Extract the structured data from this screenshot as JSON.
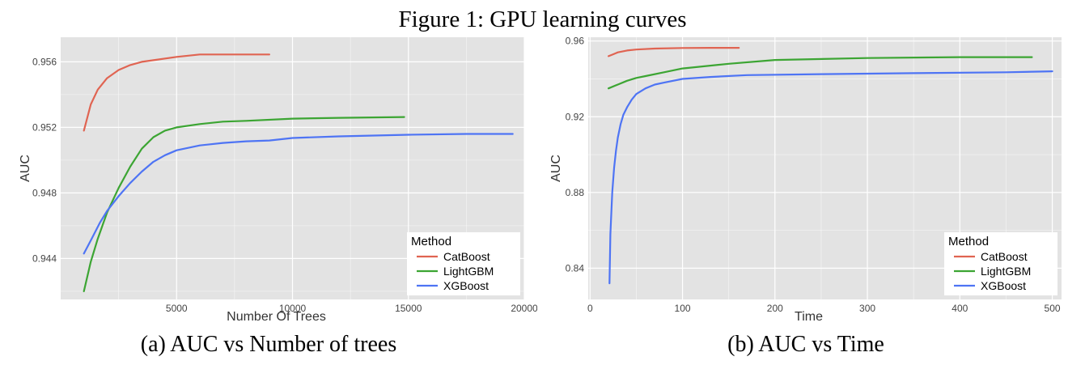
{
  "figure_title": "Figure 1: GPU learning curves",
  "captions": [
    "(a) AUC vs Number of trees",
    "(b) AUC vs Time"
  ],
  "colors": {
    "CatBoost": "#e06452",
    "LightGBM": "#3ca533",
    "XGBoost": "#4e74f4",
    "panel": "#e3e3e3",
    "grid": "#ffffff"
  },
  "chart_data": [
    {
      "type": "line",
      "xlabel": "Number Of Trees",
      "ylabel": "AUC",
      "xlim": [
        0,
        20000
      ],
      "ylim": [
        0.9415,
        0.9575
      ],
      "xticks": [
        5000,
        10000,
        15000,
        20000
      ],
      "xtick_labels": [
        "5000",
        "10000",
        "15000",
        "20000"
      ],
      "yticks": [
        0.944,
        0.948,
        0.952,
        0.956
      ],
      "ytick_labels": [
        "0.944",
        "0.948",
        "0.952",
        "0.956"
      ],
      "grid": true,
      "legend": {
        "title": "Method",
        "position": "bottom-right"
      },
      "series": [
        {
          "name": "CatBoost",
          "x": [
            1000,
            1300,
            1600,
            2000,
            2500,
            3000,
            3500,
            4000,
            5000,
            6000,
            7000,
            8000,
            9000
          ],
          "y": [
            0.9518,
            0.9534,
            0.9543,
            0.955,
            0.9555,
            0.9558,
            0.956,
            0.9561,
            0.9563,
            0.95645,
            0.95645,
            0.95645,
            0.95645
          ]
        },
        {
          "name": "LightGBM",
          "x": [
            1000,
            1300,
            1600,
            2000,
            2500,
            3000,
            3500,
            4000,
            4500,
            5000,
            6000,
            7000,
            8000,
            10000,
            12000,
            14820
          ],
          "y": [
            0.942,
            0.9438,
            0.9452,
            0.9468,
            0.9483,
            0.9496,
            0.9507,
            0.9514,
            0.9518,
            0.952,
            0.9522,
            0.95235,
            0.9524,
            0.95253,
            0.95258,
            0.95263
          ]
        },
        {
          "name": "XGBoost",
          "x": [
            1000,
            1300,
            1700,
            2000,
            2500,
            3000,
            3500,
            4000,
            4500,
            5000,
            6000,
            7000,
            8000,
            9000,
            10000,
            12000,
            15000,
            17500,
            19500
          ],
          "y": [
            0.9443,
            0.9451,
            0.9462,
            0.9469,
            0.9478,
            0.9486,
            0.9493,
            0.9499,
            0.9503,
            0.9506,
            0.9509,
            0.95105,
            0.95115,
            0.9512,
            0.95135,
            0.95145,
            0.95155,
            0.9516,
            0.9516
          ]
        }
      ]
    },
    {
      "type": "line",
      "xlabel": "Time",
      "ylabel": "AUC",
      "xlim": [
        -2,
        510
      ],
      "ylim": [
        0.8235,
        0.962
      ],
      "xticks": [
        0,
        100,
        200,
        300,
        400,
        500
      ],
      "xtick_labels": [
        "0",
        "100",
        "200",
        "300",
        "400",
        "500"
      ],
      "yticks": [
        0.84,
        0.88,
        0.92,
        0.96
      ],
      "ytick_labels": [
        "0.84",
        "0.88",
        "0.92",
        "0.96"
      ],
      "grid": true,
      "legend": {
        "title": "Method",
        "position": "bottom-right"
      },
      "series": [
        {
          "name": "CatBoost",
          "x": [
            20,
            25,
            30,
            40,
            50,
            70,
            100,
            130,
            161
          ],
          "y": [
            0.952,
            0.953,
            0.954,
            0.955,
            0.9555,
            0.956,
            0.9563,
            0.9564,
            0.9564
          ]
        },
        {
          "name": "LightGBM",
          "x": [
            20,
            30,
            40,
            50,
            60,
            80,
            100,
            150,
            200,
            300,
            400,
            478
          ],
          "y": [
            0.935,
            0.937,
            0.939,
            0.9405,
            0.9415,
            0.9435,
            0.9455,
            0.948,
            0.95,
            0.951,
            0.9515,
            0.9515
          ]
        },
        {
          "name": "XGBoost",
          "x": [
            21,
            22,
            24,
            26,
            28,
            30,
            33,
            36,
            40,
            45,
            50,
            60,
            70,
            80,
            100,
            130,
            170,
            250,
            350,
            450,
            500
          ],
          "y": [
            0.832,
            0.858,
            0.88,
            0.893,
            0.902,
            0.909,
            0.916,
            0.921,
            0.925,
            0.929,
            0.932,
            0.935,
            0.937,
            0.938,
            0.94,
            0.941,
            0.942,
            0.9425,
            0.943,
            0.9435,
            0.944
          ]
        }
      ]
    }
  ]
}
